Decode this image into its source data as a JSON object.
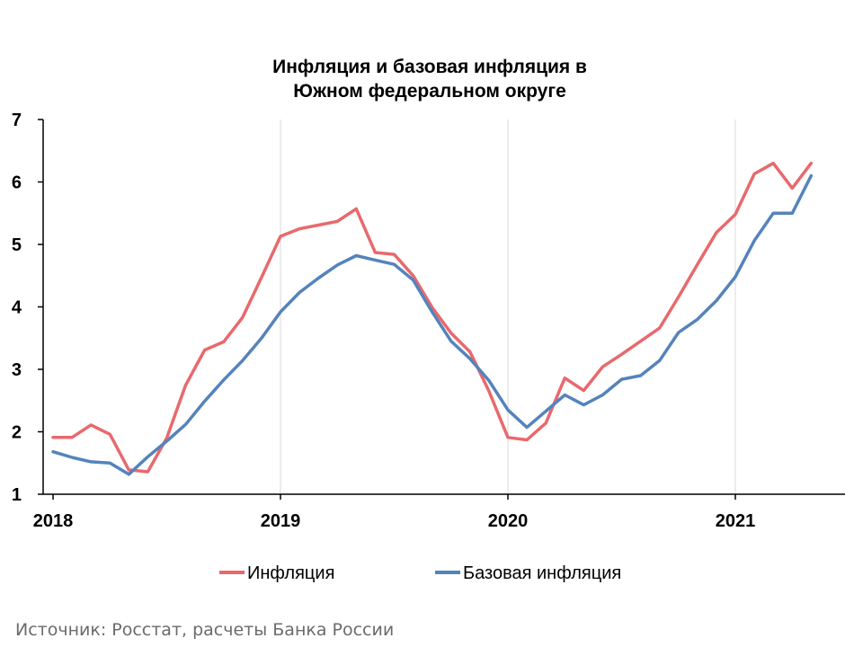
{
  "chart_data": {
    "type": "line",
    "title_lines": [
      "Инфляция и базовая инфляция в",
      "Южном федеральном округе"
    ],
    "xlabel": "",
    "ylabel": "",
    "ylim": [
      1,
      7
    ],
    "yticks": [
      "1",
      "2",
      "3",
      "4",
      "5",
      "6",
      "7"
    ],
    "xlim": [
      "2018-01",
      "2021-05"
    ],
    "xticks": [
      {
        "label": "2018",
        "date": "2018-01"
      },
      {
        "label": "2019",
        "date": "2019-01"
      },
      {
        "label": "2020",
        "date": "2020-01"
      },
      {
        "label": "2021",
        "date": "2021-01"
      }
    ],
    "grid": "vertical",
    "legend_position": "bottom",
    "x": [
      "2018-01",
      "2018-02",
      "2018-03",
      "2018-04",
      "2018-05",
      "2018-06",
      "2018-07",
      "2018-08",
      "2018-09",
      "2018-10",
      "2018-11",
      "2018-12",
      "2019-01",
      "2019-02",
      "2019-03",
      "2019-04",
      "2019-05",
      "2019-06",
      "2019-07",
      "2019-08",
      "2019-09",
      "2019-10",
      "2019-11",
      "2019-12",
      "2020-01",
      "2020-02",
      "2020-03",
      "2020-04",
      "2020-05",
      "2020-06",
      "2020-07",
      "2020-08",
      "2020-09",
      "2020-10",
      "2020-11",
      "2020-12",
      "2021-01",
      "2021-02",
      "2021-03",
      "2021-04",
      "2021-05"
    ],
    "series": [
      {
        "name": "Инфляция",
        "color": "#e8696d",
        "values": [
          1.91,
          1.91,
          2.11,
          1.96,
          1.39,
          1.36,
          1.9,
          2.75,
          3.31,
          3.44,
          3.83,
          4.47,
          5.13,
          5.25,
          5.31,
          5.37,
          5.57,
          4.87,
          4.84,
          4.5,
          3.99,
          3.58,
          3.28,
          2.65,
          1.91,
          1.87,
          2.14,
          2.86,
          2.66,
          3.04,
          3.24,
          3.45,
          3.66,
          4.16,
          4.68,
          5.19,
          5.48,
          6.13,
          6.3,
          5.9,
          6.3
        ]
      },
      {
        "name": "Базовая инфляция",
        "color": "#5583bb",
        "values": [
          1.68,
          1.59,
          1.52,
          1.5,
          1.32,
          1.6,
          1.85,
          2.12,
          2.49,
          2.83,
          3.14,
          3.5,
          3.92,
          4.23,
          4.46,
          4.67,
          4.82,
          4.75,
          4.68,
          4.43,
          3.92,
          3.45,
          3.17,
          2.82,
          2.35,
          2.07,
          2.33,
          2.59,
          2.43,
          2.59,
          2.84,
          2.9,
          3.14,
          3.59,
          3.8,
          4.1,
          4.48,
          5.06,
          5.5,
          5.5,
          6.1
        ]
      }
    ]
  },
  "source": "Источник: Росстат, расчеты Банка России"
}
